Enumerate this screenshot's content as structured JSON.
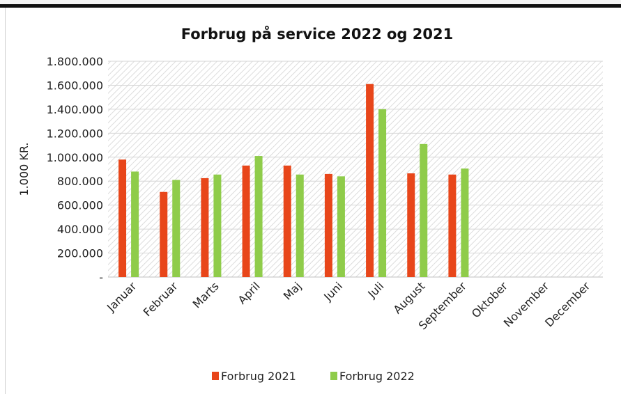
{
  "chart_data": {
    "type": "bar",
    "title": "Forbrug på service 2022 og 2021",
    "ylabel": "1.000 KR.",
    "xlabel": "",
    "categories": [
      "Januar",
      "Februar",
      "Marts",
      "April",
      "Maj",
      "Juni",
      "Juli",
      "August",
      "September",
      "Oktober",
      "November",
      "December"
    ],
    "series": [
      {
        "name": "Forbrug 2021",
        "color": "#e8461a",
        "values": [
          980000,
          710000,
          825000,
          930000,
          930000,
          860000,
          1610000,
          865000,
          855000,
          null,
          null,
          null
        ]
      },
      {
        "name": "Forbrug 2022",
        "color": "#8fcc4a",
        "values": [
          880000,
          810000,
          855000,
          1010000,
          855000,
          840000,
          1400000,
          1110000,
          905000,
          null,
          null,
          null
        ]
      }
    ],
    "ylim": [
      0,
      1800000
    ],
    "yticks": [
      0,
      200000,
      400000,
      600000,
      800000,
      1000000,
      1200000,
      1400000,
      1600000,
      1800000
    ],
    "ytick_labels": [
      "-",
      "200.000",
      "400.000",
      "600.000",
      "800.000",
      "1.000.000",
      "1.200.000",
      "1.400.000",
      "1.600.000",
      "1.800.000"
    ],
    "grid": true,
    "legend": "bottom"
  }
}
